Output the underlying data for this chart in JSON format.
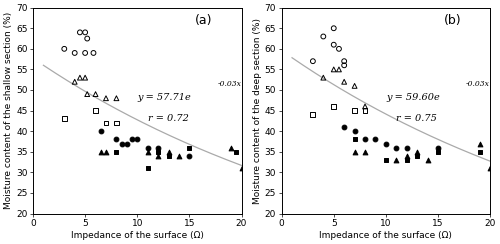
{
  "title_a": "(a)",
  "title_b": "(b)",
  "ylabel_a": "Moisture content of the shallow section (%)",
  "ylabel_b": "Moisture content of the deep section (%)",
  "xlabel": "Impedance of the surface (Ω)",
  "ylim": [
    20,
    70
  ],
  "xlim": [
    0,
    20
  ],
  "yticks": [
    20,
    25,
    30,
    35,
    40,
    45,
    50,
    55,
    60,
    65,
    70
  ],
  "xticks": [
    0,
    5,
    10,
    15,
    20
  ],
  "eq_a_base": "y = 57.71e",
  "eq_a_super": "-0.03x",
  "r_a": "r = 0.72",
  "eq_b_base": "y = 59.60e",
  "eq_b_super": "-0.03x",
  "r_b": "r = 0.75",
  "fit_a": {
    "A": 57.71,
    "b": -0.03
  },
  "fit_b": {
    "A": 59.6,
    "b": -0.03
  },
  "data_a": {
    "open_circle": [
      [
        3.0,
        60
      ],
      [
        4.5,
        64
      ],
      [
        5.0,
        64
      ],
      [
        5.2,
        62.5
      ],
      [
        5.0,
        59
      ],
      [
        5.8,
        59
      ],
      [
        4.0,
        59
      ]
    ],
    "open_triangle": [
      [
        4.0,
        52
      ],
      [
        4.5,
        53
      ],
      [
        5.0,
        53
      ],
      [
        5.2,
        49
      ],
      [
        6.0,
        49
      ],
      [
        7.0,
        48
      ],
      [
        8.0,
        48
      ]
    ],
    "open_square": [
      [
        3.0,
        43
      ],
      [
        6.0,
        45
      ],
      [
        7.0,
        42
      ],
      [
        8.0,
        42
      ]
    ],
    "filled_circle": [
      [
        6.5,
        40
      ],
      [
        8.0,
        38
      ],
      [
        8.5,
        37
      ],
      [
        9.0,
        37
      ],
      [
        9.5,
        38
      ],
      [
        10.0,
        38
      ],
      [
        11.0,
        36
      ],
      [
        12.0,
        36
      ],
      [
        15.0,
        34
      ]
    ],
    "filled_triangle": [
      [
        6.5,
        35
      ],
      [
        7.0,
        35
      ],
      [
        11.0,
        35
      ],
      [
        12.0,
        34
      ],
      [
        13.0,
        35
      ],
      [
        14.0,
        34
      ],
      [
        19.0,
        36
      ],
      [
        20.0,
        31
      ]
    ],
    "filled_square": [
      [
        8.0,
        35
      ],
      [
        11.0,
        31
      ],
      [
        12.0,
        35
      ],
      [
        13.0,
        34
      ],
      [
        15.0,
        36
      ],
      [
        19.5,
        35
      ]
    ]
  },
  "data_b": {
    "open_circle": [
      [
        3.0,
        57
      ],
      [
        4.0,
        63
      ],
      [
        5.0,
        65
      ],
      [
        5.0,
        61
      ],
      [
        5.5,
        60
      ],
      [
        6.0,
        57
      ],
      [
        6.0,
        56
      ]
    ],
    "open_triangle": [
      [
        4.0,
        53
      ],
      [
        5.0,
        55
      ],
      [
        5.5,
        55
      ],
      [
        6.0,
        52
      ],
      [
        7.0,
        51
      ],
      [
        8.0,
        46
      ]
    ],
    "open_square": [
      [
        3.0,
        44
      ],
      [
        5.0,
        46
      ],
      [
        7.0,
        45
      ],
      [
        8.0,
        45
      ]
    ],
    "filled_circle": [
      [
        6.0,
        41
      ],
      [
        7.0,
        40
      ],
      [
        8.0,
        38
      ],
      [
        9.0,
        38
      ],
      [
        10.0,
        37
      ],
      [
        11.0,
        36
      ],
      [
        12.0,
        36
      ],
      [
        15.0,
        36
      ]
    ],
    "filled_triangle": [
      [
        7.0,
        35
      ],
      [
        8.0,
        35
      ],
      [
        11.0,
        33
      ],
      [
        12.0,
        34
      ],
      [
        13.0,
        35
      ],
      [
        14.0,
        33
      ],
      [
        19.0,
        37
      ],
      [
        20.0,
        31
      ]
    ],
    "filled_square": [
      [
        7.0,
        38
      ],
      [
        10.0,
        33
      ],
      [
        12.0,
        33
      ],
      [
        13.0,
        34
      ],
      [
        15.0,
        35
      ],
      [
        19.0,
        35
      ]
    ]
  },
  "marker_size": 12,
  "marker_lw": 0.7,
  "line_color": "#aaaaaa",
  "bg_color": "#ffffff",
  "font_size_tick": 6.5,
  "font_size_label": 6.5,
  "font_size_eq": 7.0,
  "font_size_title": 9.0
}
